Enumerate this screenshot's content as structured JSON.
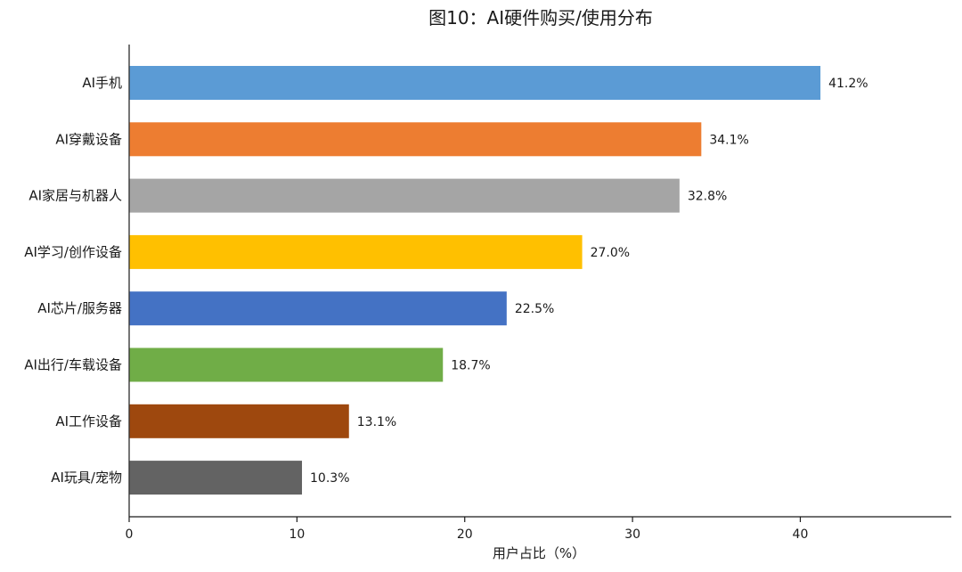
{
  "chart_data": {
    "type": "bar",
    "orientation": "horizontal",
    "title": "图10：AI硬件购买/使用分布",
    "xlabel": "用户占比（%）",
    "ylabel": "",
    "xlim": [
      0,
      49
    ],
    "xticks": [
      0,
      10,
      20,
      30,
      40
    ],
    "grid": false,
    "categories": [
      "AI手机",
      "AI穿戴设备",
      "AI家居与机器人",
      "AI学习/创作设备",
      "AI芯片/服务器",
      "AI出行/车载设备",
      "AI工作设备",
      "AI玩具/宠物"
    ],
    "values": [
      41.2,
      34.1,
      32.8,
      27.0,
      22.5,
      18.7,
      13.1,
      10.3
    ],
    "value_labels": [
      "41.2%",
      "34.1%",
      "32.8%",
      "27.0%",
      "22.5%",
      "18.7%",
      "13.1%",
      "10.3%"
    ],
    "colors": [
      "#5b9bd5",
      "#ed7d31",
      "#a5a5a5",
      "#ffc000",
      "#4472c4",
      "#70ad47",
      "#9e480e",
      "#636363"
    ]
  }
}
